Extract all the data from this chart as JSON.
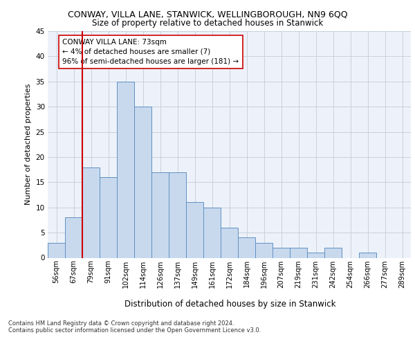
{
  "title_line1": "CONWAY, VILLA LANE, STANWICK, WELLINGBOROUGH, NN9 6QQ",
  "title_line2": "Size of property relative to detached houses in Stanwick",
  "xlabel": "Distribution of detached houses by size in Stanwick",
  "ylabel": "Number of detached properties",
  "categories": [
    "56sqm",
    "67sqm",
    "79sqm",
    "91sqm",
    "102sqm",
    "114sqm",
    "126sqm",
    "137sqm",
    "149sqm",
    "161sqm",
    "172sqm",
    "184sqm",
    "196sqm",
    "207sqm",
    "219sqm",
    "231sqm",
    "242sqm",
    "254sqm",
    "266sqm",
    "277sqm",
    "289sqm"
  ],
  "bar_values": [
    3,
    8,
    18,
    16,
    35,
    30,
    17,
    17,
    11,
    10,
    6,
    4,
    3,
    2,
    2,
    1,
    2,
    0,
    1,
    0,
    0
  ],
  "bar_color": "#c8d9ee",
  "bar_edge_color": "#6090c0",
  "vertical_line_color": "#cc0000",
  "annotation_text": "CONWAY VILLA LANE: 73sqm\n← 4% of detached houses are smaller (7)\n96% of semi-detached houses are larger (181) →",
  "annotation_box_color": "#ffffff",
  "annotation_box_edge": "#cc0000",
  "ylim": [
    0,
    45
  ],
  "yticks": [
    0,
    5,
    10,
    15,
    20,
    25,
    30,
    35,
    40,
    45
  ],
  "footer_line1": "Contains HM Land Registry data © Crown copyright and database right 2024.",
  "footer_line2": "Contains public sector information licensed under the Open Government Licence v3.0.",
  "background_color": "#edf2fa",
  "grid_color": "#c8d0dc"
}
